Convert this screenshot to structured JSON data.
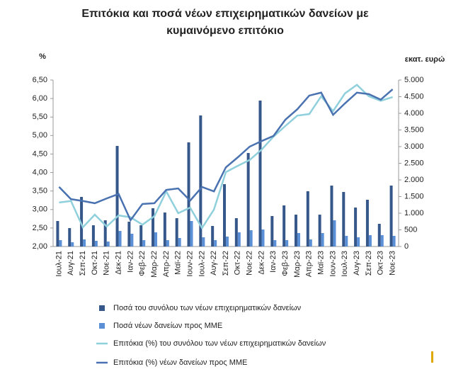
{
  "chart_data": {
    "type": "bar_line",
    "title": [
      "Επιτόκια και ποσά νέων επιχειρηματικών δανείων με",
      "κυμαινόμενο επιτόκιο"
    ],
    "y_label": "%",
    "y2_label": "εκατ. ευρώ",
    "categories": [
      "Ιουλ-21",
      "Αυγ-21",
      "Σεπ-21",
      "Οκτ-21",
      "Νοε-21",
      "Δεκ-21",
      "Ιαν-22",
      "Φεβ-22",
      "Μαρ-22",
      "Απρ-22",
      "Μαϊ-22",
      "Ιουν-22",
      "Ιουλ-22",
      "Αυγ-22",
      "Σεπ-22",
      "Οκτ-22",
      "Νοε-22",
      "Δεκ-22",
      "Ιαν-23",
      "Φεβ-23",
      "Μαρ-23",
      "Απρ-23",
      "Μαϊ-23",
      "Ιουν-23",
      "Ιουλ-23",
      "Αυγ-23",
      "Σεπ-23",
      "Οκτ-23",
      "Νοε-23"
    ],
    "ylim": [
      2,
      6.5
    ],
    "yticks": [
      {
        "value": 2,
        "label": "2,00"
      },
      {
        "value": 2.5,
        "label": "2,50"
      },
      {
        "value": 3,
        "label": "3,00"
      },
      {
        "value": 3.5,
        "label": "3,50"
      },
      {
        "value": 4,
        "label": "4,00"
      },
      {
        "value": 4.5,
        "label": "4,50"
      },
      {
        "value": 5,
        "label": "5,00"
      },
      {
        "value": 5.5,
        "label": "5,50"
      },
      {
        "value": 6,
        "label": "6,00"
      },
      {
        "value": 6.5,
        "label": "6,50"
      }
    ],
    "y2lim": [
      0,
      5000
    ],
    "y2ticks": [
      0,
      500,
      {
        "value": 1000,
        "label": "1.000"
      },
      {
        "value": 1500,
        "label": "1.500"
      },
      {
        "value": 2000,
        "label": "2.000"
      },
      {
        "value": 2500,
        "label": "2.500"
      },
      {
        "value": 3000,
        "label": "3.000"
      },
      {
        "value": 3500,
        "label": "3.500"
      },
      {
        "value": 4000,
        "label": "4.000"
      },
      {
        "value": 4500,
        "label": "4.500"
      },
      {
        "value": 5000,
        "label": "5.000"
      }
    ],
    "series": [
      {
        "name": "Ποσά του συνόλου των νέων επιχειρηματικών δανείων",
        "kind": "bar",
        "axis": "y2",
        "color": "#36578a",
        "values": [
          766,
          553,
          1489,
          638,
          787,
          3021,
          745,
          638,
          1149,
          1021,
          851,
          3128,
          3936,
          617,
          1872,
          851,
          2809,
          4383,
          915,
          1234,
          957,
          1660,
          957,
          1830,
          1638,
          1170,
          1404,
          681,
          1830
        ]
      },
      {
        "name": "Ποσά νέων δανείων προς ΜΜΕ",
        "kind": "bar",
        "axis": "y2",
        "color": "#5b8fd6",
        "values": [
          191,
          128,
          213,
          170,
          149,
          468,
          383,
          191,
          426,
          191,
          255,
          766,
          277,
          191,
          298,
          426,
          489,
          511,
          191,
          191,
          404,
          213,
          404,
          787,
          319,
          277,
          340,
          340,
          319
        ]
      },
      {
        "name": "Επιτόκια (%) του συνόλου των νέων επιχειρηματικών δανείων",
        "kind": "line",
        "color": "#8fd0dc",
        "values": [
          3.19,
          3.23,
          2.52,
          2.86,
          2.54,
          2.84,
          2.79,
          2.59,
          2.82,
          3.49,
          2.9,
          3.05,
          2.5,
          3.0,
          4.01,
          4.18,
          4.34,
          4.62,
          4.97,
          5.26,
          5.54,
          5.58,
          6.06,
          5.66,
          6.14,
          6.37,
          6.06,
          5.94,
          6.04
        ]
      },
      {
        "name": "Επιτόκια (%) νέων δανείων προς ΜΜΕ",
        "kind": "line",
        "color": "#4a72b0",
        "values": [
          3.61,
          3.28,
          3.23,
          3.17,
          3.3,
          3.42,
          2.71,
          3.15,
          3.17,
          3.53,
          3.57,
          3.24,
          3.61,
          3.49,
          4.14,
          4.41,
          4.7,
          4.85,
          4.99,
          5.43,
          5.71,
          6.08,
          6.16,
          5.56,
          5.87,
          6.16,
          6.12,
          5.97,
          6.25
        ]
      }
    ]
  }
}
